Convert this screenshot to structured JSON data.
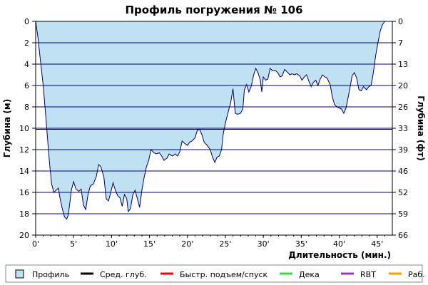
{
  "chart_data": {
    "type": "area",
    "title": "Профиль погружения № 106",
    "xlabel": "Длительность (мин.)",
    "ylabel_left": "Глубина (м)",
    "ylabel_right": "Глубина (фт)",
    "xlim": [
      0,
      47
    ],
    "ylim": [
      0,
      20
    ],
    "y_inverted": true,
    "x_ticks": [
      0,
      5,
      10,
      15,
      20,
      25,
      30,
      35,
      40,
      45
    ],
    "x_tick_labels": [
      "0'",
      "5'",
      "10'",
      "15'",
      "20'",
      "25'",
      "30'",
      "35'",
      "40'",
      "45'"
    ],
    "y_ticks_left": [
      0,
      2,
      4,
      6,
      8,
      10,
      12,
      14,
      16,
      18,
      20
    ],
    "y_ticks_right_labels": [
      "0",
      "7",
      "13",
      "20",
      "26",
      "33",
      "39",
      "46",
      "52",
      "59",
      "66"
    ],
    "grid": true,
    "reference_line_depth": 10.1,
    "fill_color": "#bfe1f2",
    "line_color": "#000066",
    "grid_color": "#00008b",
    "profile": [
      [
        0,
        0
      ],
      [
        0.3,
        1.5
      ],
      [
        0.6,
        3.5
      ],
      [
        1.0,
        6.0
      ],
      [
        1.4,
        9.5
      ],
      [
        1.8,
        13.0
      ],
      [
        2.1,
        15.2
      ],
      [
        2.4,
        16.0
      ],
      [
        2.7,
        15.8
      ],
      [
        3.0,
        15.6
      ],
      [
        3.2,
        16.5
      ],
      [
        3.5,
        17.5
      ],
      [
        3.8,
        18.3
      ],
      [
        4.1,
        18.5
      ],
      [
        4.3,
        18.1
      ],
      [
        4.5,
        17.0
      ],
      [
        4.7,
        15.8
      ],
      [
        5.0,
        15.0
      ],
      [
        5.3,
        15.7
      ],
      [
        5.7,
        15.9
      ],
      [
        6.0,
        15.7
      ],
      [
        6.3,
        17.2
      ],
      [
        6.6,
        17.6
      ],
      [
        6.9,
        16.2
      ],
      [
        7.2,
        15.4
      ],
      [
        7.6,
        15.2
      ],
      [
        8.0,
        14.5
      ],
      [
        8.3,
        13.4
      ],
      [
        8.6,
        13.6
      ],
      [
        9.0,
        14.6
      ],
      [
        9.3,
        16.6
      ],
      [
        9.6,
        16.8
      ],
      [
        9.9,
        16.0
      ],
      [
        10.2,
        15.1
      ],
      [
        10.5,
        15.8
      ],
      [
        10.8,
        16.3
      ],
      [
        11.1,
        16.5
      ],
      [
        11.4,
        17.3
      ],
      [
        11.7,
        16.2
      ],
      [
        12.0,
        16.6
      ],
      [
        12.2,
        17.8
      ],
      [
        12.5,
        17.5
      ],
      [
        12.8,
        16.2
      ],
      [
        13.1,
        15.8
      ],
      [
        13.4,
        16.6
      ],
      [
        13.7,
        17.4
      ],
      [
        14.0,
        15.8
      ],
      [
        14.3,
        14.6
      ],
      [
        14.6,
        13.6
      ],
      [
        14.9,
        13.0
      ],
      [
        15.2,
        12.0
      ],
      [
        15.6,
        12.3
      ],
      [
        15.9,
        12.4
      ],
      [
        16.3,
        12.3
      ],
      [
        16.6,
        12.6
      ],
      [
        16.9,
        13.0
      ],
      [
        17.3,
        12.8
      ],
      [
        17.6,
        12.4
      ],
      [
        18.0,
        12.6
      ],
      [
        18.4,
        12.4
      ],
      [
        18.7,
        12.6
      ],
      [
        19.0,
        12.2
      ],
      [
        19.3,
        11.2
      ],
      [
        19.6,
        11.4
      ],
      [
        20.0,
        11.6
      ],
      [
        20.3,
        11.3
      ],
      [
        20.6,
        11.2
      ],
      [
        21.0,
        10.9
      ],
      [
        21.3,
        10.2
      ],
      [
        21.6,
        10.1
      ],
      [
        21.9,
        10.6
      ],
      [
        22.2,
        11.3
      ],
      [
        22.6,
        11.6
      ],
      [
        23.0,
        12.0
      ],
      [
        23.3,
        12.7
      ],
      [
        23.6,
        13.2
      ],
      [
        23.9,
        12.7
      ],
      [
        24.2,
        12.6
      ],
      [
        24.5,
        12.0
      ],
      [
        24.7,
        10.6
      ],
      [
        25.0,
        9.5
      ],
      [
        25.4,
        8.4
      ],
      [
        25.7,
        7.6
      ],
      [
        26.0,
        6.3
      ],
      [
        26.3,
        8.6
      ],
      [
        26.6,
        8.7
      ],
      [
        27.0,
        8.6
      ],
      [
        27.3,
        8.2
      ],
      [
        27.5,
        6.4
      ],
      [
        27.8,
        5.9
      ],
      [
        28.1,
        6.6
      ],
      [
        28.4,
        6.1
      ],
      [
        28.7,
        5.1
      ],
      [
        29.0,
        4.4
      ],
      [
        29.3,
        4.8
      ],
      [
        29.6,
        5.5
      ],
      [
        29.8,
        6.6
      ],
      [
        30.0,
        5.2
      ],
      [
        30.3,
        5.5
      ],
      [
        30.6,
        5.4
      ],
      [
        30.9,
        4.4
      ],
      [
        31.2,
        4.6
      ],
      [
        31.6,
        4.6
      ],
      [
        31.9,
        4.8
      ],
      [
        32.2,
        5.2
      ],
      [
        32.5,
        5.1
      ],
      [
        32.8,
        4.5
      ],
      [
        33.1,
        4.7
      ],
      [
        33.5,
        5.0
      ],
      [
        33.8,
        4.9
      ],
      [
        34.1,
        5.0
      ],
      [
        34.4,
        4.9
      ],
      [
        34.8,
        5.1
      ],
      [
        35.1,
        5.5
      ],
      [
        35.4,
        5.2
      ],
      [
        35.7,
        5.0
      ],
      [
        36.0,
        5.6
      ],
      [
        36.3,
        6.1
      ],
      [
        36.6,
        5.7
      ],
      [
        36.9,
        5.5
      ],
      [
        37.2,
        6.0
      ],
      [
        37.5,
        5.4
      ],
      [
        37.8,
        5.0
      ],
      [
        38.1,
        5.2
      ],
      [
        38.4,
        5.3
      ],
      [
        38.8,
        5.9
      ],
      [
        39.1,
        7.1
      ],
      [
        39.4,
        7.8
      ],
      [
        39.7,
        8.0
      ],
      [
        40.0,
        8.1
      ],
      [
        40.3,
        8.2
      ],
      [
        40.6,
        8.6
      ],
      [
        40.9,
        8.1
      ],
      [
        41.1,
        7.4
      ],
      [
        41.4,
        6.3
      ],
      [
        41.7,
        5.1
      ],
      [
        42.0,
        4.8
      ],
      [
        42.3,
        5.3
      ],
      [
        42.6,
        6.4
      ],
      [
        42.9,
        6.5
      ],
      [
        43.2,
        6.1
      ],
      [
        43.6,
        6.4
      ],
      [
        43.9,
        6.1
      ],
      [
        44.2,
        6.0
      ],
      [
        44.5,
        4.8
      ],
      [
        44.8,
        3.2
      ],
      [
        45.1,
        2.0
      ],
      [
        45.4,
        0.9
      ],
      [
        45.7,
        0.3
      ],
      [
        46.0,
        0
      ]
    ],
    "legend": [
      {
        "label": "Профиль",
        "color": "#bfe1f2",
        "type": "swatch"
      },
      {
        "label": "Сред. глуб.",
        "color": "#000000",
        "type": "line"
      },
      {
        "label": "Быстр. подъем/спуск",
        "color": "#ff0000",
        "type": "line"
      },
      {
        "label": "Дека",
        "color": "#33dd33",
        "type": "line"
      },
      {
        "label": "RBT",
        "color": "#9933cc",
        "type": "line"
      },
      {
        "label": "Раб.",
        "color": "#ff9900",
        "type": "line"
      }
    ]
  }
}
